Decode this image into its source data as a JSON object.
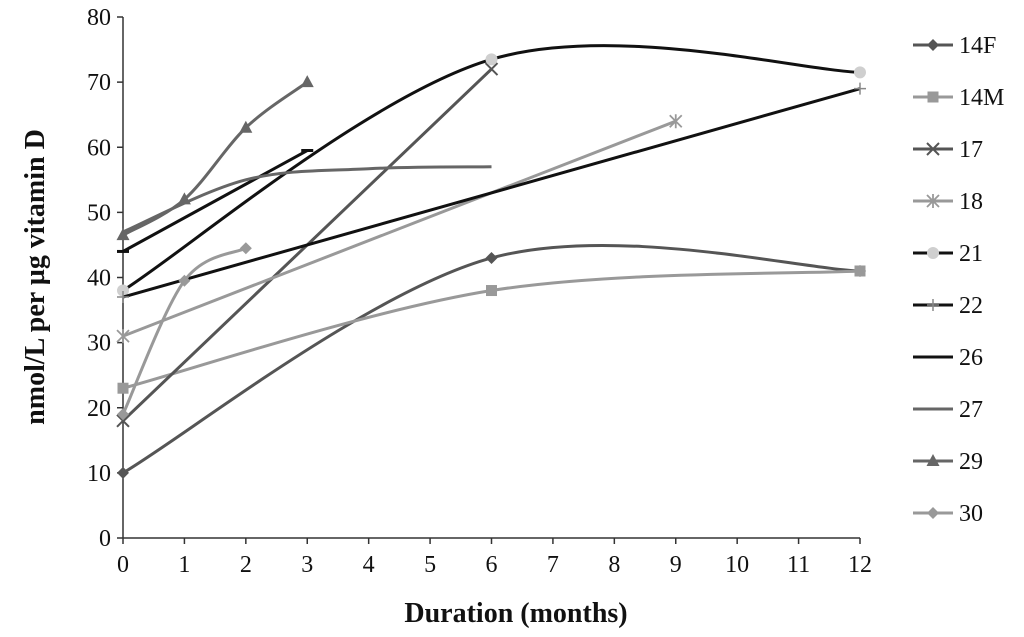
{
  "chart_data": {
    "type": "line",
    "title": "",
    "xlabel": "Duration (months)",
    "ylabel": "nmol/L per µg vitamin D",
    "xlim": [
      0,
      12
    ],
    "ylim": [
      0,
      80
    ],
    "xticks": [
      "0",
      "1",
      "2",
      "3",
      "4",
      "5",
      "6",
      "7",
      "8",
      "9",
      "10",
      "11",
      "12"
    ],
    "yticks": [
      "0",
      "10",
      "20",
      "30",
      "40",
      "50",
      "60",
      "70",
      "80"
    ],
    "grid": false,
    "legend_position": "right",
    "series": [
      {
        "name": "14F",
        "color": "#555555",
        "marker": "diamond",
        "x": [
          0,
          6,
          12
        ],
        "y": [
          10,
          43,
          41
        ]
      },
      {
        "name": "14M",
        "color": "#999999",
        "marker": "square",
        "x": [
          0,
          6,
          12
        ],
        "y": [
          23,
          38,
          41
        ]
      },
      {
        "name": "17",
        "color": "#555555",
        "marker": "x",
        "x": [
          0,
          6
        ],
        "y": [
          18,
          72
        ]
      },
      {
        "name": "18",
        "color": "#999999",
        "marker": "star",
        "x": [
          0,
          9
        ],
        "y": [
          31,
          64
        ]
      },
      {
        "name": "21",
        "color": "#111111",
        "marker": "circle",
        "x": [
          0,
          6,
          12
        ],
        "y": [
          38,
          73.5,
          71.5
        ]
      },
      {
        "name": "22",
        "color": "#111111",
        "marker": "plus",
        "x": [
          0,
          12
        ],
        "y": [
          37,
          69
        ]
      },
      {
        "name": "26",
        "color": "#111111",
        "marker": "dash",
        "x": [
          0,
          3
        ],
        "y": [
          44,
          59.5
        ]
      },
      {
        "name": "27",
        "color": "#666666",
        "marker": "none",
        "x": [
          0,
          2,
          4,
          6
        ],
        "y": [
          47,
          55,
          56.7,
          57
        ]
      },
      {
        "name": "29",
        "color": "#666666",
        "marker": "triangle",
        "x": [
          0,
          1,
          2,
          3
        ],
        "y": [
          46.5,
          52,
          63,
          70
        ]
      },
      {
        "name": "30",
        "color": "#999999",
        "marker": "diamond",
        "x": [
          0,
          1,
          2
        ],
        "y": [
          19,
          39.5,
          44.5
        ]
      }
    ]
  }
}
